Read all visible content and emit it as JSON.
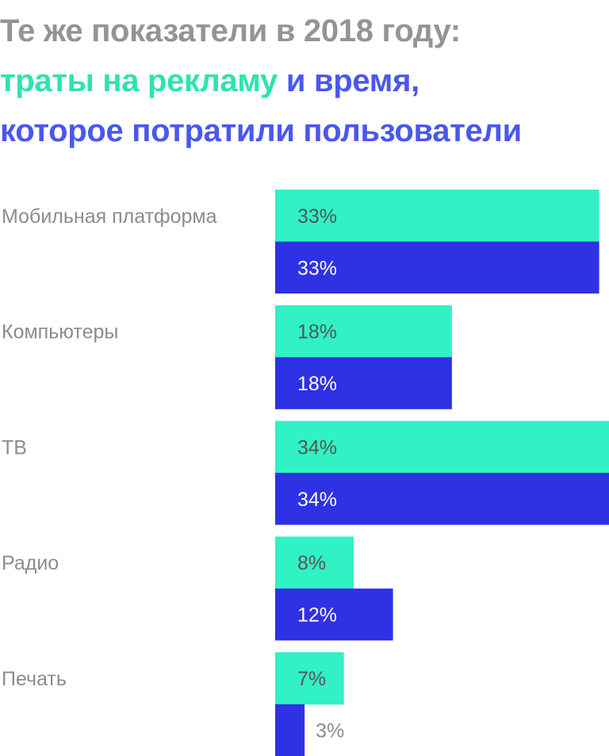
{
  "title": {
    "line1": "Те же показатели в 2018 году:",
    "line2_part1": "траты на рекламу",
    "line2_part2": "и время,",
    "line3": "которое потратили пользователи"
  },
  "colors": {
    "ad_spend": "#31f2c5",
    "user_time": "#2f31e4",
    "title_gray": "#949494",
    "title_green": "#2ee3b0",
    "title_blue": "#4a57ee"
  },
  "chart_data": {
    "type": "bar",
    "orientation": "horizontal",
    "categories": [
      "Мобильная платформа",
      "Компьютеры",
      "ТВ",
      "Радио",
      "Печать"
    ],
    "series": [
      {
        "name": "траты на рекламу",
        "values": [
          33,
          18,
          34,
          8,
          7
        ],
        "labels": [
          "33%",
          "18%",
          "34%",
          "8%",
          "7%"
        ],
        "color": "#31f2c5"
      },
      {
        "name": "время, которое потратили пользователи",
        "values": [
          33,
          18,
          34,
          12,
          3
        ],
        "labels": [
          "33%",
          "18%",
          "34%",
          "12%",
          "3%"
        ],
        "color": "#2f31e4"
      }
    ],
    "xlim": [
      0,
      34
    ]
  }
}
